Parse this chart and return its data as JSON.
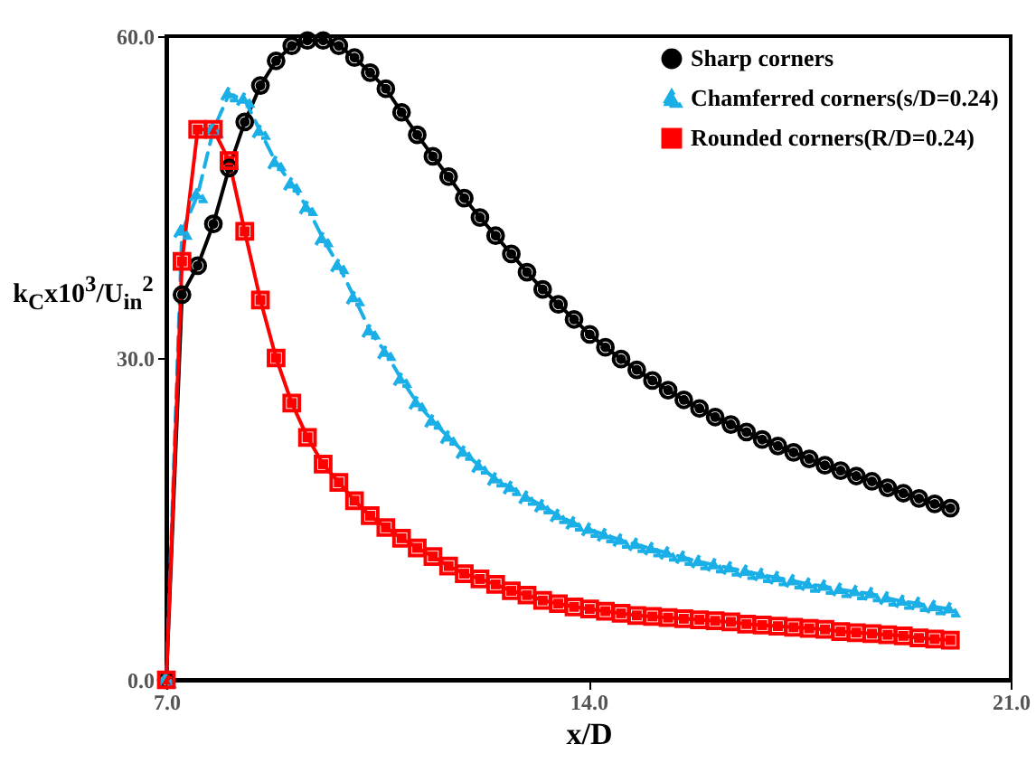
{
  "chart_data": {
    "type": "line",
    "xlabel": "x/D",
    "ylabel": "k$_{C}$x10$^{3}$/U$_{in}$$^{2}$",
    "x": [
      7,
      7.26,
      7.52,
      7.78,
      8.04,
      8.3,
      8.56,
      8.82,
      9.08,
      9.34,
      9.6,
      9.86,
      10.12,
      10.38,
      10.64,
      10.9,
      11.16,
      11.42,
      11.68,
      11.94,
      12.2,
      12.46,
      12.72,
      12.98,
      13.24,
      13.5,
      13.76,
      14.02,
      14.28,
      14.54,
      14.8,
      15.06,
      15.32,
      15.58,
      15.84,
      16.1,
      16.36,
      16.62,
      16.88,
      17.14,
      17.4,
      17.66,
      17.92,
      18.18,
      18.44,
      18.7,
      18.96,
      19.22,
      19.48,
      19.74,
      20
    ],
    "series": [
      {
        "name": "Sharp corners",
        "color": "#000000",
        "marker": "circle",
        "line_style": "solid",
        "values": [
          0,
          35.9,
          38.6,
          42.5,
          47.7,
          52.0,
          55.4,
          57.7,
          59.1,
          59.6,
          59.6,
          59.1,
          58.0,
          56.6,
          55.1,
          52.9,
          50.8,
          48.8,
          46.9,
          44.9,
          43.1,
          41.4,
          39.7,
          38.0,
          36.4,
          35.0,
          33.6,
          32.2,
          31.0,
          29.9,
          28.9,
          27.9,
          27.0,
          26.1,
          25.3,
          24.5,
          23.8,
          23.1,
          22.4,
          21.8,
          21.2,
          20.6,
          20.0,
          19.5,
          19.0,
          18.5,
          17.9,
          17.4,
          16.9,
          16.4,
          16.0
        ]
      },
      {
        "name": "Chamferred corners(s/D=0.24)",
        "color": "#1aafe6",
        "marker": "triangle",
        "line_style": "dashed",
        "values": [
          0,
          41.8,
          45.2,
          51.3,
          54.6,
          54.1,
          51.1,
          48.2,
          46.2,
          44.0,
          41.1,
          38.6,
          35.6,
          32.5,
          30.5,
          28.0,
          25.8,
          24.1,
          22.6,
          21.2,
          19.9,
          18.7,
          17.9,
          17.0,
          16.2,
          15.3,
          14.6,
          14.0,
          13.5,
          13.0,
          12.6,
          12.2,
          11.8,
          11.4,
          11.0,
          10.7,
          10.4,
          10.1,
          9.8,
          9.5,
          9.2,
          8.9,
          8.7,
          8.4,
          8.2,
          8.0,
          7.6,
          7.3,
          7.1,
          6.8,
          6.6
        ]
      },
      {
        "name": "Rounded corners(R/D=0.24)",
        "color": "#ff0000",
        "marker": "square",
        "line_style": "solid",
        "values": [
          0,
          39.0,
          51.3,
          51.3,
          48.4,
          41.8,
          35.4,
          30.0,
          25.8,
          22.6,
          20.1,
          18.4,
          16.7,
          15.3,
          14.2,
          13.2,
          12.3,
          11.5,
          10.6,
          9.9,
          9.4,
          8.9,
          8.3,
          7.9,
          7.4,
          7.1,
          6.8,
          6.6,
          6.4,
          6.2,
          6.0,
          5.9,
          5.8,
          5.7,
          5.6,
          5.5,
          5.4,
          5.2,
          5.1,
          5.0,
          4.9,
          4.8,
          4.7,
          4.5,
          4.4,
          4.3,
          4.2,
          4.1,
          3.9,
          3.8,
          3.7
        ]
      }
    ],
    "xlim": [
      7,
      21
    ],
    "xticks": [
      {
        "value": 7,
        "label": "7.0"
      },
      {
        "value": 14,
        "label": "14.0"
      },
      {
        "value": 21,
        "label": "21.0"
      }
    ],
    "ylim": [
      0,
      60
    ],
    "yticks": [
      {
        "value": 0,
        "label": "0.0"
      },
      {
        "value": 30,
        "label": "30.0"
      },
      {
        "value": 60,
        "label": "60.0"
      }
    ],
    "legend": "top right",
    "grid": false
  }
}
